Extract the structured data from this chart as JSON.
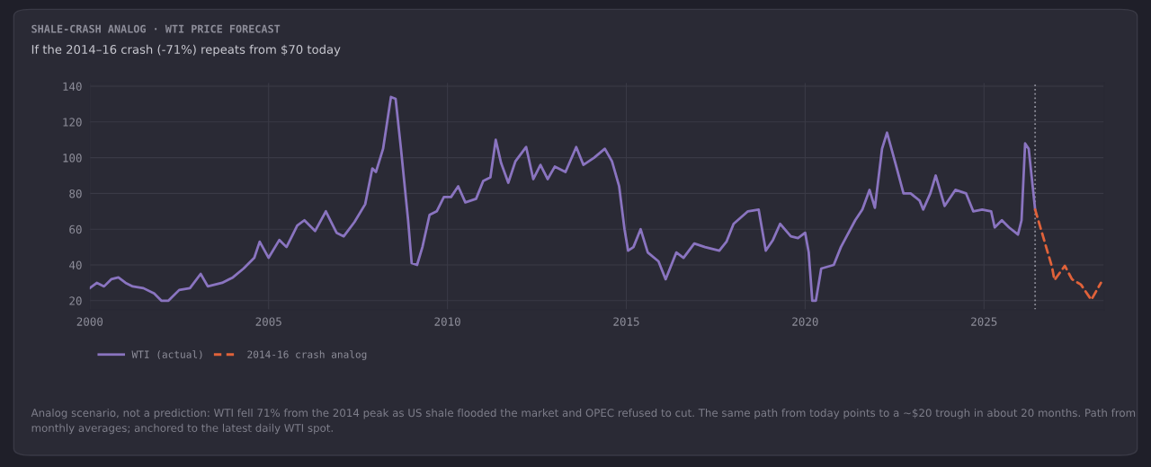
{
  "chart_data": {
    "type": "line",
    "title": "SHALE-CRASH ANALOG · WTI PRICE FORECAST",
    "subtitle": "If the 2014–16 crash (-71%) repeats from $70 today",
    "series": [
      {
        "name": "WTI (actual)",
        "color": "#8a74c0",
        "line_style": "solid",
        "x": [
          2000.0,
          2000.2,
          2000.4,
          2000.6,
          2000.8,
          2001.0,
          2001.2,
          2001.5,
          2001.8,
          2002.0,
          2002.2,
          2002.5,
          2002.8,
          2003.1,
          2003.3,
          2003.7,
          2004.0,
          2004.3,
          2004.6,
          2004.75,
          2005.0,
          2005.3,
          2005.5,
          2005.8,
          2006.0,
          2006.3,
          2006.6,
          2006.9,
          2007.1,
          2007.4,
          2007.7,
          2007.9,
          2008.0,
          2008.2,
          2008.42,
          2008.55,
          2008.7,
          2008.9,
          2009.0,
          2009.15,
          2009.3,
          2009.5,
          2009.7,
          2009.9,
          2010.1,
          2010.3,
          2010.5,
          2010.8,
          2011.0,
          2011.2,
          2011.35,
          2011.5,
          2011.7,
          2011.9,
          2012.2,
          2012.4,
          2012.6,
          2012.8,
          2013.0,
          2013.3,
          2013.6,
          2013.8,
          2014.1,
          2014.4,
          2014.6,
          2014.8,
          2014.95,
          2015.05,
          2015.2,
          2015.4,
          2015.6,
          2015.9,
          2016.1,
          2016.4,
          2016.6,
          2016.9,
          2017.2,
          2017.6,
          2017.8,
          2018.0,
          2018.4,
          2018.7,
          2018.9,
          2019.1,
          2019.3,
          2019.6,
          2019.8,
          2020.0,
          2020.1,
          2020.2,
          2020.3,
          2020.45,
          2020.8,
          2021.0,
          2021.4,
          2021.6,
          2021.8,
          2021.95,
          2022.15,
          2022.29,
          2022.55,
          2022.75,
          2022.95,
          2023.2,
          2023.3,
          2023.5,
          2023.65,
          2023.9,
          2024.2,
          2024.5,
          2024.7,
          2024.95,
          2025.2,
          2025.3,
          2025.5,
          2025.7,
          2025.95,
          2026.05,
          2026.15,
          2026.25,
          2026.43
        ],
        "values": [
          27,
          30,
          28,
          32,
          33,
          30,
          28,
          27,
          24,
          20,
          20,
          26,
          27,
          35,
          28,
          30,
          33,
          38,
          44,
          53,
          44,
          54,
          50,
          62,
          65,
          59,
          70,
          58,
          56,
          64,
          74,
          94,
          92,
          105,
          134,
          133,
          105,
          65,
          41,
          40,
          50,
          68,
          70,
          78,
          78,
          84,
          75,
          77,
          87,
          89,
          110,
          97,
          86,
          98,
          106,
          88,
          96,
          88,
          95,
          92,
          106,
          96,
          100,
          105,
          98,
          84,
          60,
          48,
          50,
          60,
          47,
          42,
          32,
          47,
          44,
          52,
          50,
          48,
          53,
          63,
          70,
          71,
          48,
          54,
          63,
          56,
          55,
          58,
          47,
          20,
          20,
          38,
          40,
          50,
          65,
          71,
          82,
          72,
          105,
          114,
          95,
          80,
          80,
          76,
          71,
          80,
          90,
          73,
          82,
          80,
          70,
          71,
          70,
          61,
          65,
          61,
          57,
          65,
          108,
          105,
          71
        ]
      },
      {
        "name": "2014-16 crash analog",
        "color": "#e0623a",
        "line_style": "dashed",
        "x": [
          2026.43,
          2026.9,
          2026.97,
          2027.26,
          2027.46,
          2027.71,
          2028.0,
          2028.27
        ],
        "values": [
          71,
          39,
          31.5,
          39.5,
          32,
          29,
          20.5,
          30
        ]
      }
    ],
    "xlim": [
      2000,
      2028.35
    ],
    "xticks": [
      2000,
      2005,
      2010,
      2015,
      2020,
      2025
    ],
    "ylim": [
      15,
      142
    ],
    "yticks": [
      20,
      40,
      60,
      80,
      100,
      120,
      140
    ],
    "ref_lines": [
      {
        "axis": "x",
        "value": 2026.43,
        "color": "#8c8c98",
        "line_style": "dotted"
      }
    ],
    "grid": true,
    "legend": "bottom left",
    "marker": "none",
    "annotations": [
      "Analog scenario, not a prediction: WTI fell 71% from the 2014 peak as US shale flooded the market and OPEC refused to cut. The same path from today points to a ~$20 trough in about 20 months. Path from monthly averages; anchored to the latest daily WTI spot."
    ]
  }
}
